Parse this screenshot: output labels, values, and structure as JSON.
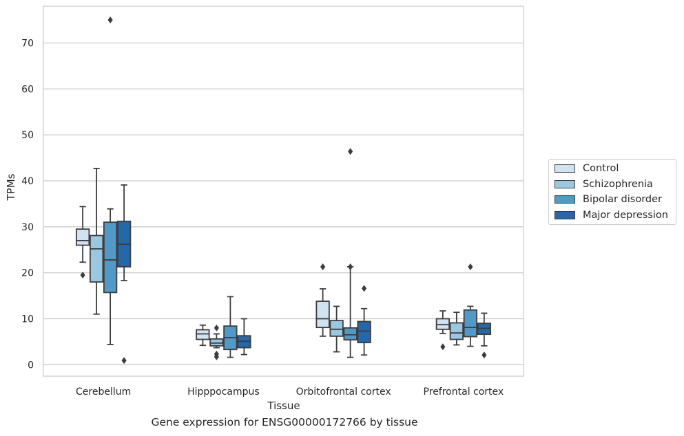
{
  "chart_data": {
    "type": "box",
    "title": "",
    "xlabel": "Tissue",
    "ylabel": "TPMs",
    "caption": "Gene expression for ENSG00000172766 by tissue",
    "ylim": [
      -2.5,
      78
    ],
    "yticks": [
      0,
      10,
      20,
      30,
      40,
      50,
      60,
      70
    ],
    "grid": true,
    "legend_position": "right",
    "categories": [
      "Cerebellum",
      "Hipppocampus",
      "Orbitofrontal cortex",
      "Prefrontal cortex"
    ],
    "series": [
      {
        "name": "Control",
        "color": "#d1e2f2",
        "boxes": [
          {
            "whislo": 22.3,
            "q1": 26.0,
            "med": 27.0,
            "q3": 29.5,
            "whishi": 34.4,
            "fliers": [
              19.5
            ]
          },
          {
            "whislo": 4.2,
            "q1": 5.5,
            "med": 6.7,
            "q3": 7.6,
            "whishi": 8.6,
            "fliers": []
          },
          {
            "whislo": 6.2,
            "q1": 8.1,
            "med": 10.0,
            "q3": 13.8,
            "whishi": 16.5,
            "fliers": [
              21.3
            ]
          },
          {
            "whislo": 6.8,
            "q1": 7.7,
            "med": 8.7,
            "q3": 10.0,
            "whishi": 11.7,
            "fliers": [
              3.9
            ]
          }
        ]
      },
      {
        "name": "Schizophrenia",
        "color": "#9ac8e0",
        "boxes": [
          {
            "whislo": 11.0,
            "q1": 18.0,
            "med": 25.2,
            "q3": 28.1,
            "whishi": 42.7,
            "fliers": []
          },
          {
            "whislo": 3.7,
            "q1": 4.1,
            "med": 4.7,
            "q3": 5.6,
            "whishi": 6.7,
            "fliers": [
              8.0,
              2.3,
              1.7
            ]
          },
          {
            "whislo": 2.8,
            "q1": 6.2,
            "med": 7.7,
            "q3": 9.6,
            "whishi": 12.7,
            "fliers": []
          },
          {
            "whislo": 4.3,
            "q1": 5.5,
            "med": 6.9,
            "q3": 9.1,
            "whishi": 11.4,
            "fliers": []
          }
        ]
      },
      {
        "name": "Bipolar disorder",
        "color": "#5399c7",
        "boxes": [
          {
            "whislo": 4.4,
            "q1": 15.7,
            "med": 22.8,
            "q3": 31.0,
            "whishi": 33.9,
            "fliers": [
              75.0
            ]
          },
          {
            "whislo": 1.6,
            "q1": 3.3,
            "med": 5.9,
            "q3": 8.4,
            "whishi": 14.8,
            "fliers": []
          },
          {
            "whislo": 1.6,
            "q1": 5.4,
            "med": 6.5,
            "q3": 8.0,
            "whishi": 21.3,
            "fliers": [
              46.4,
              21.3
            ]
          },
          {
            "whislo": 4.0,
            "q1": 6.1,
            "med": 8.1,
            "q3": 11.9,
            "whishi": 12.7,
            "fliers": [
              21.3
            ]
          }
        ]
      },
      {
        "name": "Major depression",
        "color": "#2667a9",
        "boxes": [
          {
            "whislo": 18.3,
            "q1": 21.3,
            "med": 26.2,
            "q3": 31.2,
            "whishi": 39.1,
            "fliers": [
              0.9
            ]
          },
          {
            "whislo": 2.2,
            "q1": 3.7,
            "med": 5.1,
            "q3": 6.3,
            "whishi": 10.0,
            "fliers": []
          },
          {
            "whislo": 2.1,
            "q1": 4.8,
            "med": 7.3,
            "q3": 9.4,
            "whishi": 12.2,
            "fliers": [
              16.6
            ]
          },
          {
            "whislo": 4.1,
            "q1": 6.6,
            "med": 7.9,
            "q3": 9.0,
            "whishi": 11.2,
            "fliers": [
              2.1
            ]
          }
        ]
      }
    ]
  }
}
